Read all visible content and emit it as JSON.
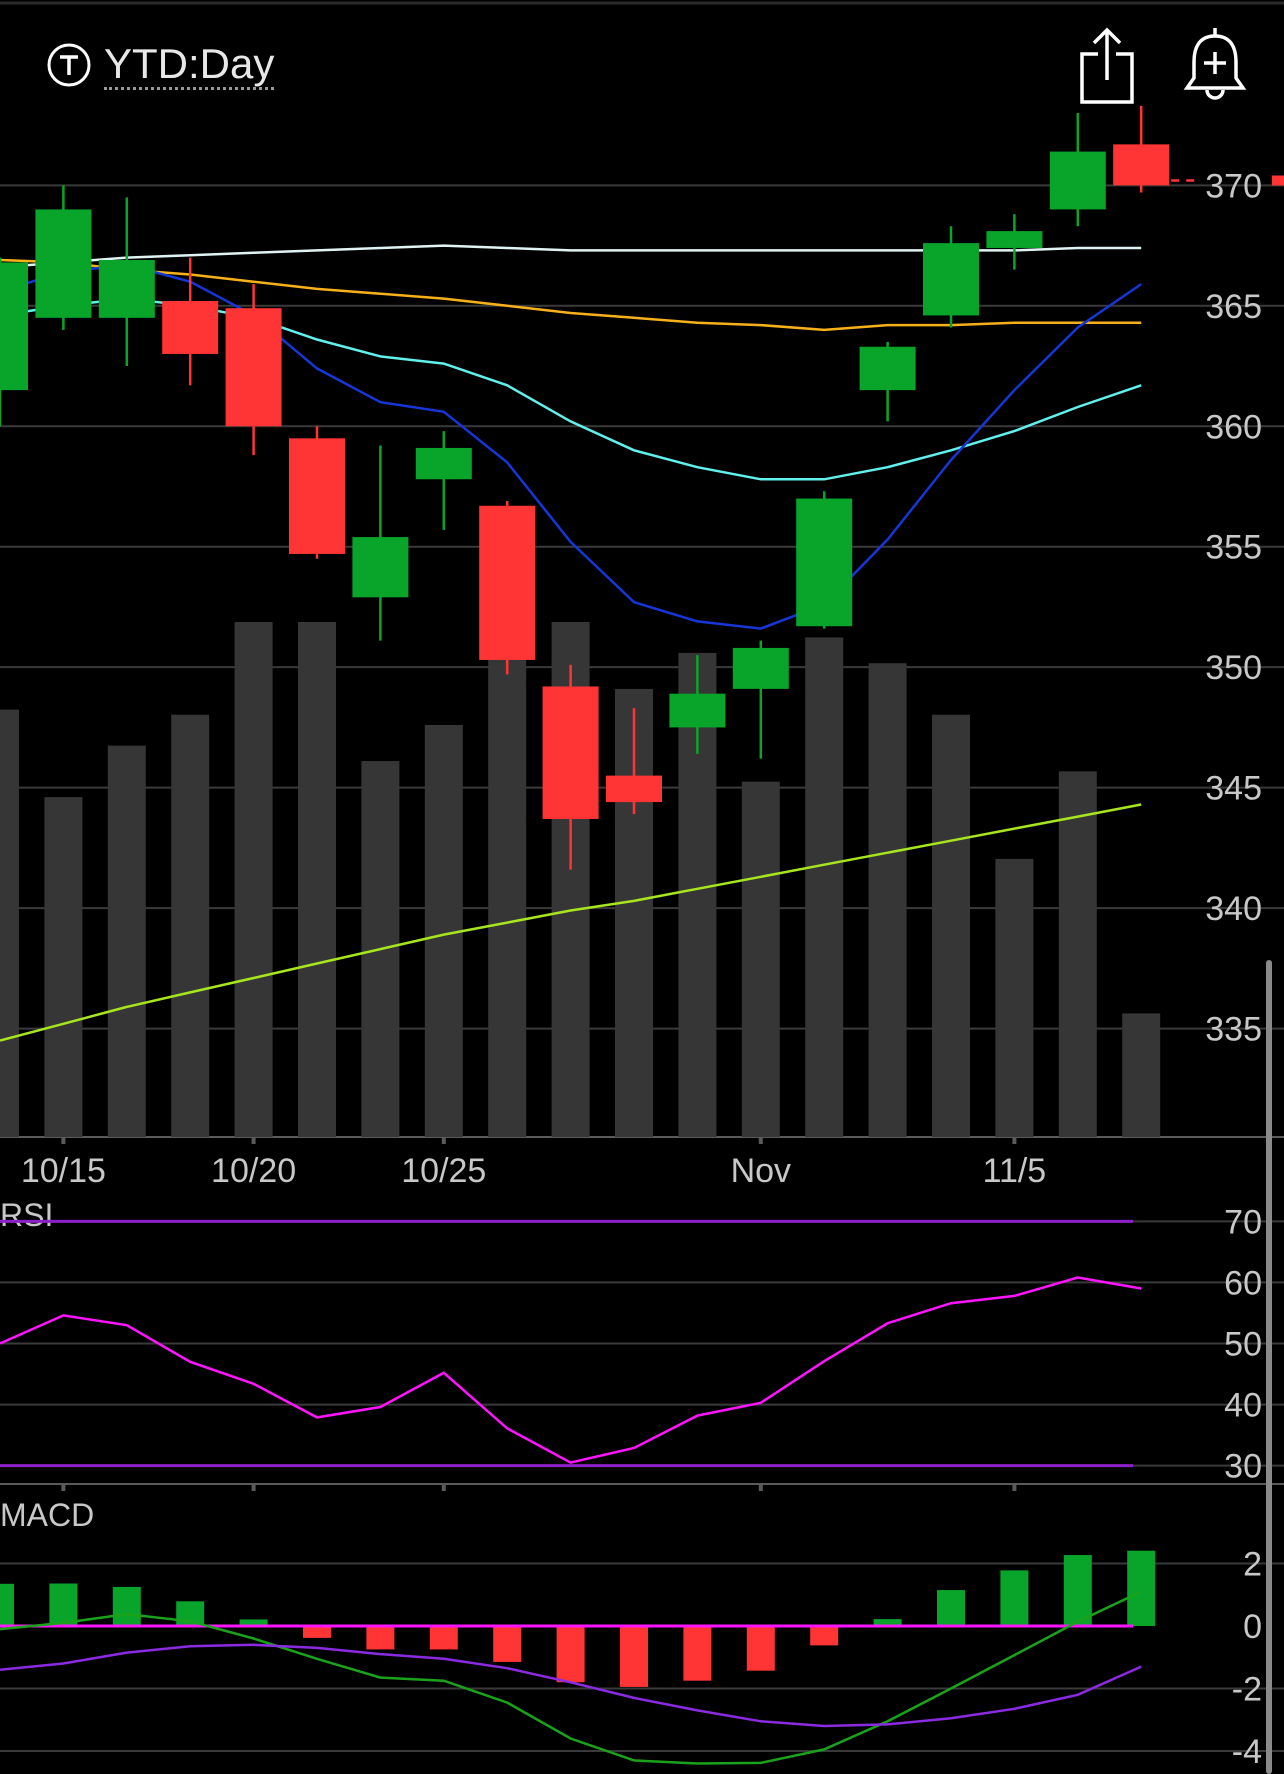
{
  "header": {
    "timeframe_label": "YTD:Day",
    "share_icon": "share-icon",
    "alert_icon": "bell-plus-icon",
    "mode_icon": "t-circle-icon"
  },
  "colors": {
    "background": "#000000",
    "up": "#09a52a",
    "down": "#ff3434",
    "volume": "#363636",
    "grid": "#3a3a3a",
    "axis_text": "#c8c8c8",
    "ma_white": "#dff3f3",
    "ma_orange": "#f6b11a",
    "ma_cyan": "#61f0ec",
    "ma_blue": "#1736d8",
    "ma_lime": "#a7e51e",
    "rsi_line": "#ff14ff",
    "rsi_band": "#8f1fc8",
    "macd_line": "#1aa31a",
    "signal_line": "#8a2be2",
    "macd_zero": "#ff14ff"
  },
  "chart_data": [
    {
      "type": "candlestick",
      "title": "",
      "x": [
        "10/14",
        "10/15",
        "10/18",
        "10/19",
        "10/20",
        "10/21",
        "10/22",
        "10/25",
        "10/26",
        "10/27",
        "10/28",
        "10/29",
        "11/1",
        "11/2",
        "11/3",
        "11/4",
        "11/5",
        "11/8",
        "11/9"
      ],
      "x_tick_labels": [
        "10/15",
        "10/20",
        "10/25",
        "Nov",
        "11/5"
      ],
      "ylim": [
        330.5,
        373.5
      ],
      "y_ticks": [
        370,
        365,
        360,
        355,
        350,
        345,
        340,
        335
      ],
      "last_price_marker": 370.2,
      "grid": true,
      "candles": [
        {
          "date": "10/14",
          "open": 361.5,
          "high": 367.0,
          "low": 360.0,
          "close": 366.8
        },
        {
          "date": "10/15",
          "open": 364.5,
          "high": 370.0,
          "low": 364.0,
          "close": 369.0
        },
        {
          "date": "10/18",
          "open": 364.5,
          "high": 369.5,
          "low": 362.5,
          "close": 366.9
        },
        {
          "date": "10/19",
          "open": 365.2,
          "high": 367.0,
          "low": 361.7,
          "close": 363.0
        },
        {
          "date": "10/20",
          "open": 364.9,
          "high": 365.9,
          "low": 358.8,
          "close": 360.0
        },
        {
          "date": "10/21",
          "open": 359.5,
          "high": 360.0,
          "low": 354.5,
          "close": 354.7
        },
        {
          "date": "10/22",
          "open": 352.9,
          "high": 359.2,
          "low": 351.1,
          "close": 355.4
        },
        {
          "date": "10/25",
          "open": 357.8,
          "high": 359.8,
          "low": 355.7,
          "close": 359.1
        },
        {
          "date": "10/26",
          "open": 356.7,
          "high": 356.9,
          "low": 349.7,
          "close": 350.3
        },
        {
          "date": "10/27",
          "open": 349.2,
          "high": 350.1,
          "low": 341.6,
          "close": 343.7
        },
        {
          "date": "10/28",
          "open": 345.5,
          "high": 348.3,
          "low": 343.9,
          "close": 344.4
        },
        {
          "date": "10/29",
          "open": 347.5,
          "high": 350.5,
          "low": 346.4,
          "close": 348.9
        },
        {
          "date": "11/1",
          "open": 349.1,
          "high": 351.1,
          "low": 346.2,
          "close": 350.8
        },
        {
          "date": "11/2",
          "open": 351.7,
          "high": 357.3,
          "low": 351.6,
          "close": 357.0
        },
        {
          "date": "11/3",
          "open": 361.5,
          "high": 363.5,
          "low": 360.2,
          "close": 363.3
        },
        {
          "date": "11/4",
          "open": 364.6,
          "high": 368.3,
          "low": 364.1,
          "close": 367.6
        },
        {
          "date": "11/5",
          "open": 367.4,
          "high": 368.8,
          "low": 366.5,
          "close": 368.1
        },
        {
          "date": "11/8",
          "open": 369.0,
          "high": 373.0,
          "low": 368.3,
          "close": 371.4
        },
        {
          "date": "11/9",
          "open": 371.7,
          "high": 373.3,
          "low": 369.7,
          "close": 370.0
        }
      ],
      "volume_relative": [
        0.83,
        0.66,
        0.76,
        0.82,
        1.0,
        1.0,
        0.73,
        0.8,
        1.0,
        1.0,
        0.87,
        0.94,
        0.69,
        0.97,
        0.92,
        0.82,
        0.54,
        0.71,
        0.24
      ],
      "moving_averages": [
        {
          "color_key": "ma_white",
          "values": [
            366.6,
            366.8,
            367.0,
            367.1,
            367.2,
            367.3,
            367.4,
            367.5,
            367.4,
            367.3,
            367.3,
            367.3,
            367.3,
            367.3,
            367.3,
            367.3,
            367.3,
            367.4,
            367.4
          ]
        },
        {
          "color_key": "ma_orange",
          "values": [
            366.9,
            366.8,
            366.5,
            366.3,
            366.0,
            365.7,
            365.5,
            365.3,
            365.0,
            364.7,
            364.5,
            364.3,
            364.2,
            364.0,
            364.2,
            364.2,
            364.3,
            364.3,
            364.3
          ]
        },
        {
          "color_key": "ma_cyan",
          "values": [
            364.6,
            365.0,
            365.3,
            365.0,
            364.5,
            363.6,
            362.9,
            362.6,
            361.7,
            360.2,
            359.0,
            358.3,
            357.8,
            357.8,
            358.3,
            359.0,
            359.8,
            360.8,
            361.7
          ]
        },
        {
          "color_key": "ma_blue",
          "values": [
            365.6,
            366.4,
            366.7,
            366.0,
            364.6,
            362.4,
            361.0,
            360.6,
            358.5,
            355.2,
            352.7,
            351.9,
            351.6,
            352.6,
            355.3,
            358.6,
            361.5,
            364.1,
            365.9
          ]
        },
        {
          "color_key": "ma_lime",
          "values": [
            334.5,
            335.2,
            335.9,
            336.5,
            337.1,
            337.7,
            338.3,
            338.9,
            339.4,
            339.9,
            340.3,
            340.8,
            341.3,
            341.8,
            342.3,
            342.8,
            343.3,
            343.8,
            344.3
          ]
        }
      ]
    },
    {
      "type": "line",
      "title": "RSI",
      "ylim": [
        27,
        73
      ],
      "y_ticks": [
        70,
        60,
        50,
        40,
        30
      ],
      "bands": [
        70,
        30
      ],
      "values": [
        50.0,
        54.6,
        53.0,
        47.0,
        43.4,
        37.9,
        39.6,
        45.2,
        36.1,
        30.5,
        32.9,
        38.2,
        40.3,
        47.1,
        53.3,
        56.6,
        57.8,
        60.8,
        59.0
      ]
    },
    {
      "type": "bar",
      "title": "MACD",
      "ylim": [
        -4.5,
        2.6
      ],
      "y_ticks": [
        2,
        0,
        -2,
        -4
      ],
      "histogram": [
        1.35,
        1.36,
        1.25,
        0.79,
        0.21,
        -0.38,
        -0.75,
        -0.75,
        -1.15,
        -1.8,
        -1.95,
        -1.75,
        -1.43,
        -0.62,
        0.22,
        1.15,
        1.78,
        2.27,
        2.41
      ],
      "macd_line": [
        -0.1,
        0.1,
        0.38,
        0.15,
        -0.4,
        -1.05,
        -1.65,
        -1.75,
        -2.45,
        -3.6,
        -4.3,
        -4.4,
        -4.38,
        -3.95,
        -3.05,
        -2.0,
        -0.93,
        0.14,
        1.1
      ],
      "signal_line": [
        -1.4,
        -1.2,
        -0.85,
        -0.65,
        -0.6,
        -0.7,
        -0.9,
        -1.05,
        -1.35,
        -1.8,
        -2.3,
        -2.7,
        -3.05,
        -3.2,
        -3.15,
        -2.95,
        -2.65,
        -2.2,
        -1.3
      ]
    }
  ]
}
